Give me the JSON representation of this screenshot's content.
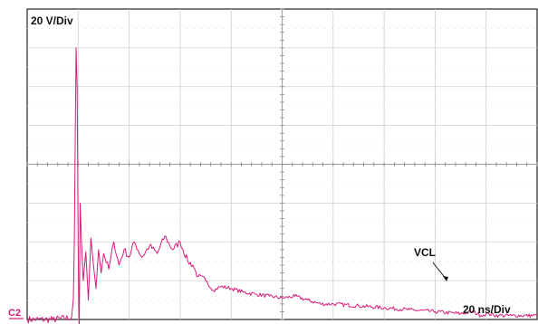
{
  "chart_data": {
    "type": "line",
    "title": "",
    "volts_per_div_label": "20 V/Div",
    "time_per_div_label": "20 ns/Div",
    "channel_label": "C2",
    "annotation": "VCL",
    "x_unit": "ns",
    "y_unit": "V",
    "xlim": [
      0,
      200
    ],
    "ylim": [
      -100,
      60
    ],
    "x_divisions": 10,
    "y_divisions": 8,
    "grid": true,
    "series": [
      {
        "name": "",
        "color": "#d81b7a",
        "x": [
          0,
          10,
          17.4,
          18.1,
          18.5,
          18.9,
          19.2,
          19.6,
          20,
          20.4,
          20.8,
          21.3,
          22,
          23,
          24,
          25,
          26,
          27,
          28,
          29,
          30,
          32,
          34,
          36,
          38,
          40,
          42,
          45,
          48,
          51,
          54,
          57,
          60,
          63,
          65,
          67,
          70,
          73,
          76,
          80,
          85,
          90,
          95,
          100,
          105,
          110,
          115,
          120,
          130,
          140,
          150,
          160,
          170,
          175,
          178,
          180,
          185,
          190,
          200
        ],
        "y": [
          -100,
          -100,
          -99,
          -90,
          -60,
          0,
          40,
          20,
          -60,
          -110,
          -40,
          -60,
          -80,
          -65,
          -90,
          -58,
          -72,
          -84,
          -64,
          -76,
          -66,
          -74,
          -60,
          -72,
          -64,
          -68,
          -60,
          -68,
          -62,
          -66,
          -57,
          -64,
          -60,
          -70,
          -72,
          -78,
          -80,
          -85,
          -83,
          -84,
          -86,
          -87,
          -88,
          -89,
          -88,
          -90,
          -92,
          -92,
          -93,
          -94,
          -95,
          -96,
          -97,
          -96,
          -98,
          -97,
          -98,
          -98,
          -98
        ]
      }
    ]
  }
}
